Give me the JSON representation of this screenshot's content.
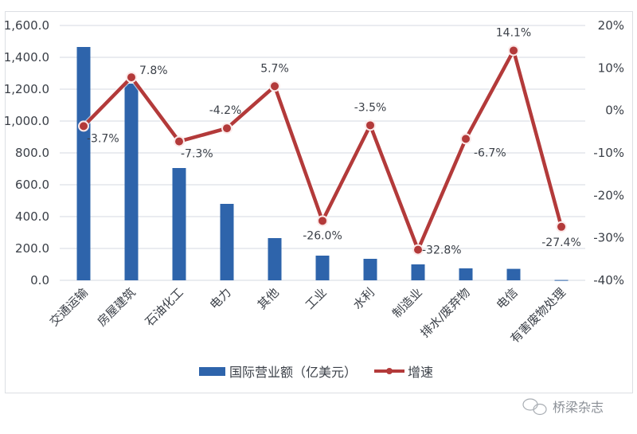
{
  "chart_data": {
    "type": "bar+line",
    "title": "",
    "categories": [
      "交通运输",
      "房屋建筑",
      "石油化工",
      "电力",
      "其他",
      "工业",
      "水利",
      "制造业",
      "排水/废弃物",
      "电信",
      "有害废物处理"
    ],
    "series": [
      {
        "name": "国际营业额（亿美元）",
        "type": "bar",
        "axis": "left",
        "color": "#2e64ab",
        "values": [
          1465,
          1235,
          705,
          480,
          265,
          155,
          135,
          100,
          75,
          72,
          2
        ]
      },
      {
        "name": "增速",
        "type": "line",
        "axis": "right",
        "color": "#b33a3a",
        "values": [
          -3.7,
          7.8,
          -7.3,
          -4.2,
          5.7,
          -26.0,
          -3.5,
          -32.8,
          -6.7,
          14.1,
          -27.4
        ],
        "labels": [
          "-3.7%",
          "7.8%",
          "-7.3%",
          "-4.2%",
          "5.7%",
          "-26.0%",
          "-3.5%",
          "-32.8%",
          "-6.7%",
          "14.1%",
          "-27.4%"
        ]
      }
    ],
    "left_axis": {
      "ylim": [
        0,
        1600
      ],
      "ticks": [
        "0.0",
        "200.0",
        "400.0",
        "600.0",
        "800.0",
        "1,000.0",
        "1,200.0",
        "1,400.0",
        "1,600.0"
      ]
    },
    "right_axis": {
      "ylim": [
        -40,
        20
      ],
      "ticks": [
        "-40%",
        "-30%",
        "-20%",
        "-10%",
        "0%",
        "10%",
        "20%"
      ]
    },
    "xlabel": "",
    "ylabel": "",
    "grid": true,
    "legend_position": "bottom"
  },
  "legend": {
    "bar_label": "国际营业额（亿美元）",
    "line_label": "增速"
  },
  "watermark": {
    "text": "桥梁杂志"
  }
}
